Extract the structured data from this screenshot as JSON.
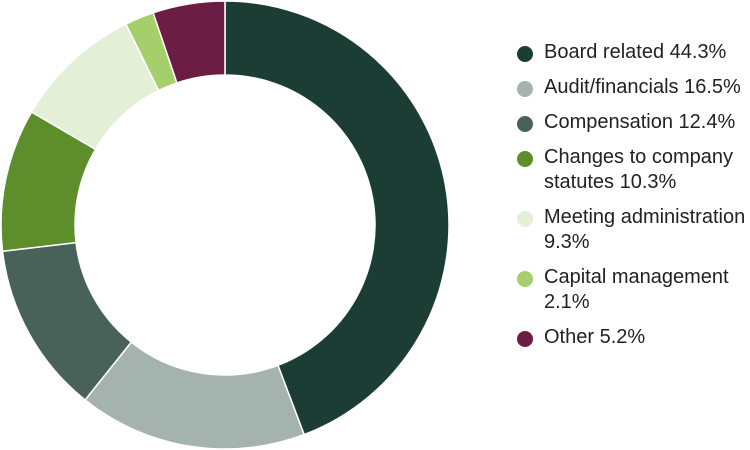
{
  "chart_data": {
    "type": "pie",
    "donut": true,
    "legend_position": "right",
    "slices": [
      {
        "label": "Board related 44.3%",
        "value": 44.3,
        "color": "#1b3d33"
      },
      {
        "label": "Audit/financials 16.5%",
        "value": 16.5,
        "color": "#a4b3ae"
      },
      {
        "label": "Compensation 12.4%",
        "value": 12.4,
        "color": "#496259"
      },
      {
        "label": "Changes to company statutes 10.3%",
        "value": 10.3,
        "color": "#5e8d2b"
      },
      {
        "label": "Meeting administration 9.3%",
        "value": 9.3,
        "color": "#e3efd6"
      },
      {
        "label": "Capital management 2.1%",
        "value": 2.1,
        "color": "#a5cf6b"
      },
      {
        "label": "Other 5.2%",
        "value": 5.2,
        "color": "#6b1d43"
      }
    ]
  }
}
